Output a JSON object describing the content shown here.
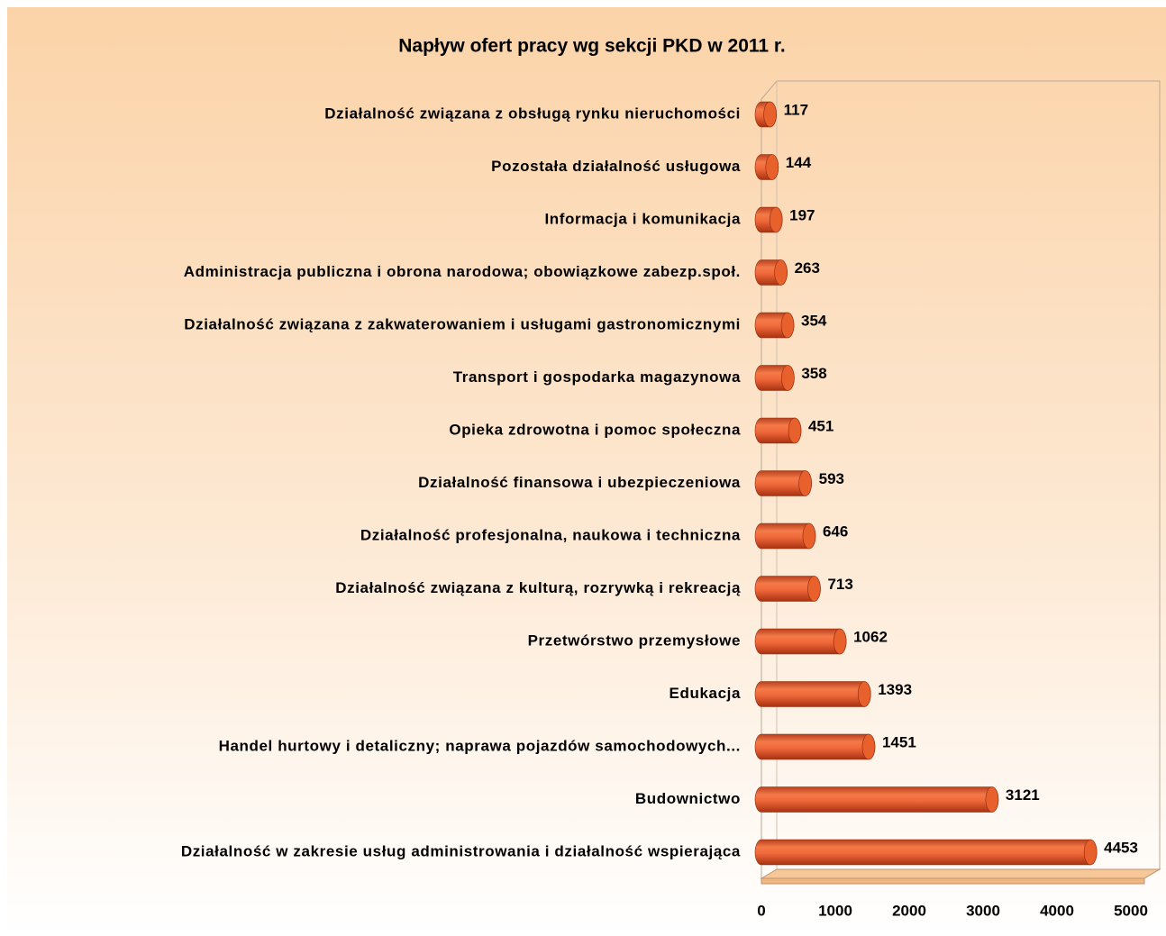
{
  "chart_data": {
    "type": "bar",
    "orientation": "horizontal",
    "title": "Napływ ofert pracy wg sekcji PKD w 2011 r.",
    "categories": [
      "Działalność związana z obsługą rynku nieruchomości",
      "Pozostała działalność usługowa",
      "Informacja i komunikacja",
      "Administracja publiczna i obrona narodowa; obowiązkowe zabezp.społ.",
      "Działalność związana z zakwaterowaniem i usługami gastronomicznymi",
      "Transport i gospodarka magazynowa",
      "Opieka zdrowotna i pomoc społeczna",
      "Działalność finansowa i ubezpieczeniowa",
      "Działalność profesjonalna, naukowa i techniczna",
      "Działalność związana z kulturą, rozrywką i rekreacją",
      "Przetwórstwo przemysłowe",
      "Edukacja",
      "Handel hurtowy i detaliczny; naprawa pojazdów samochodowych...",
      "Budownictwo",
      "Działalność w zakresie usług administrowania i działalność wspierająca"
    ],
    "values": [
      117,
      144,
      197,
      263,
      354,
      358,
      451,
      593,
      646,
      713,
      1062,
      1393,
      1451,
      3121,
      4453
    ],
    "color": "#e8602c",
    "xlim": [
      0,
      5000
    ],
    "xticks": [
      0,
      1000,
      2000,
      3000,
      4000,
      5000
    ]
  }
}
